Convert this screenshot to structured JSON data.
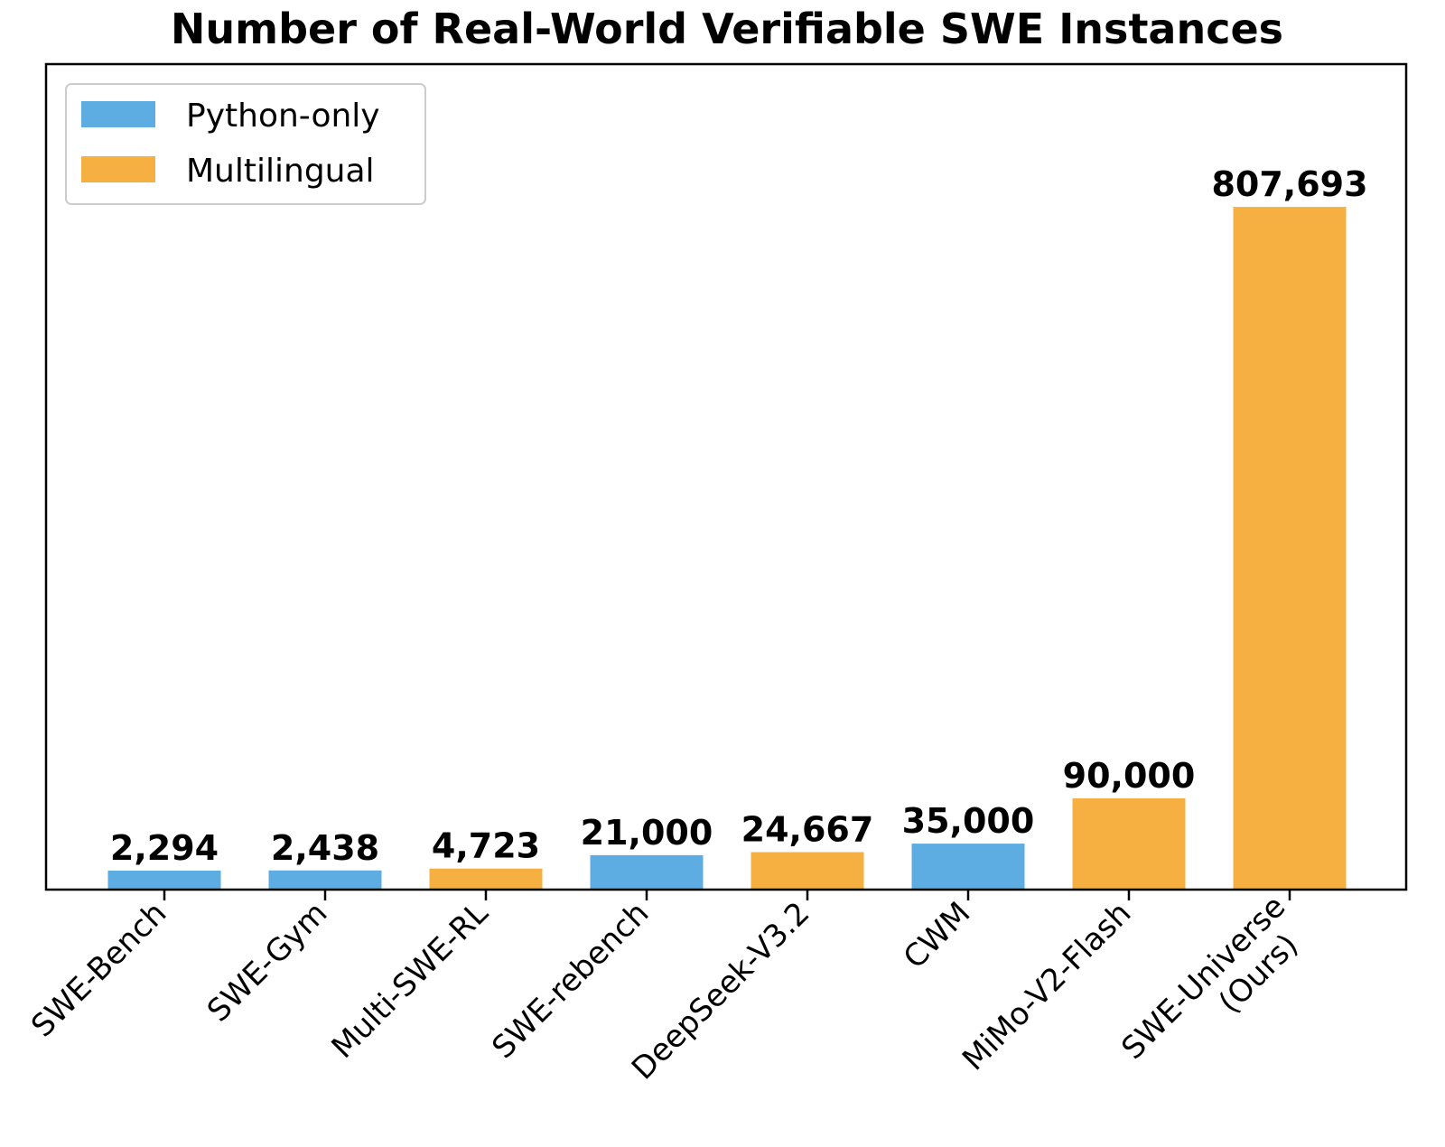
{
  "chart_data": {
    "type": "bar",
    "title": "Number of Real-World Verifiable SWE Instances",
    "xlabel": "",
    "ylabel": "",
    "categories": [
      "SWE-Bench",
      "SWE-Gym",
      "Multi-SWE-RL",
      "SWE-rebench",
      "DeepSeek-V3.2",
      "CWM",
      "MiMo-V2-Flash",
      "SWE-Universe\n(Ours)"
    ],
    "values": [
      2294,
      2438,
      4723,
      21000,
      24667,
      35000,
      90000,
      807693
    ],
    "value_labels": [
      "2,294",
      "2,438",
      "4,723",
      "21,000",
      "24,667",
      "35,000",
      "90,000",
      "807,693"
    ],
    "groups": [
      "Python-only",
      "Python-only",
      "Multilingual",
      "Python-only",
      "Multilingual",
      "Python-only",
      "Multilingual",
      "Multilingual"
    ],
    "ylim": [
      -20800,
      981000
    ],
    "grid": false,
    "y_ticks_shown": false,
    "legend": {
      "placement": "top-left",
      "entries": [
        {
          "label": "Python-only",
          "color": "#5DADE2"
        },
        {
          "label": "Multilingual",
          "color": "#F5B041"
        }
      ]
    }
  }
}
